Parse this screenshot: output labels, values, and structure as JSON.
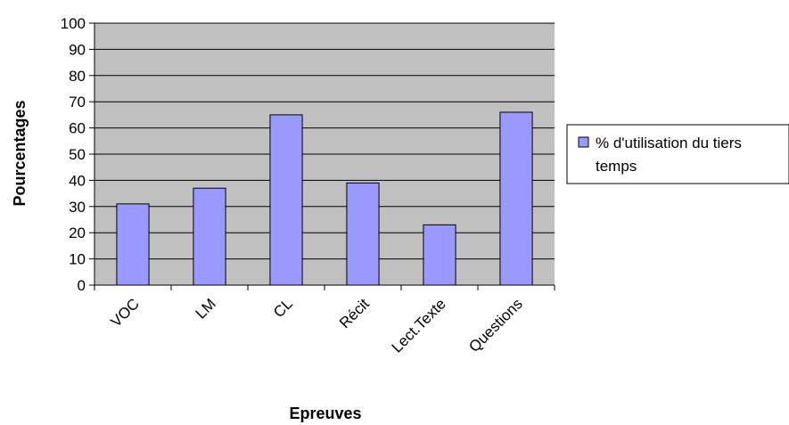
{
  "chart_data": {
    "type": "bar",
    "title": "",
    "xlabel": "Epreuves",
    "ylabel": "Pourcentages",
    "categories": [
      "VOC",
      "LM",
      "CL",
      "Récit",
      "Lect.Texte",
      "Questions"
    ],
    "series": [
      {
        "name": "% d'utilisation du tiers temps",
        "values": [
          31,
          37,
          65,
          39,
          23,
          66
        ]
      }
    ],
    "ylim": [
      0,
      100
    ],
    "yticks": [
      0,
      10,
      20,
      30,
      40,
      50,
      60,
      70,
      80,
      90,
      100
    ],
    "grid": true,
    "legend_position": "right",
    "colors": {
      "plot_background": "#c0c0c0",
      "bar_fill": "#9999ff",
      "bar_stroke": "#000000",
      "gridline": "#000000"
    }
  },
  "legend": {
    "line1": "% d'utilisation du tiers",
    "line2": "temps"
  }
}
